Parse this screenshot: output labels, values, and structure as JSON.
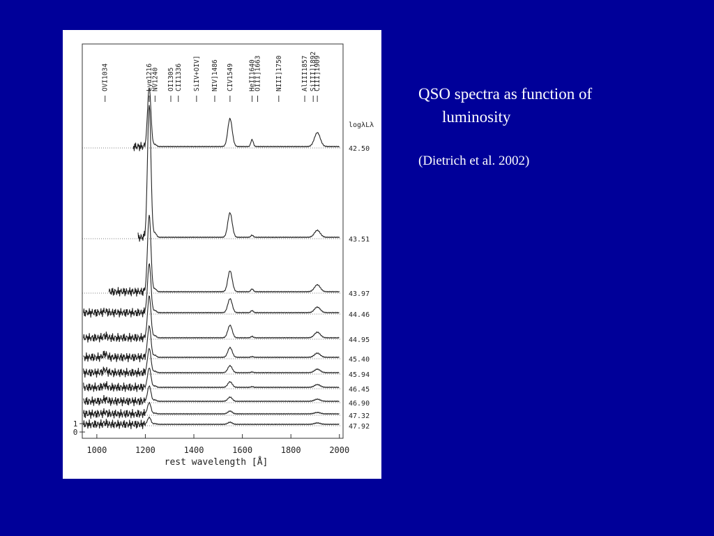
{
  "slide": {
    "title": "QSO spectra as function of luminosity",
    "citation": "(Dietrich et al. 2002)"
  },
  "figure": {
    "type": "spectra",
    "xlabel": "rest wavelength [Å]",
    "ylabel": "logλLλ",
    "xlim": [
      940,
      2015
    ],
    "xticks": [
      1000,
      1200,
      1400,
      1600,
      1800,
      2000
    ],
    "yticks": [
      0,
      1
    ],
    "lines": [
      "OVI1034",
      "Lyα1216",
      "NV1240",
      "OI1305",
      "CII1336",
      "SiIV+OIV]",
      "NIV]1486",
      "CIV1549",
      "HeII1640",
      "OIII]1663",
      "NIII]1750",
      "AlIII1857",
      "SiIII]1892",
      "CIII]1909"
    ],
    "luminosities": [
      {
        "value": 42.5,
        "label": "42.50"
      },
      {
        "value": 43.51,
        "label": "43.51"
      },
      {
        "value": 43.97,
        "label": "43.97"
      },
      {
        "value": 44.46,
        "label": "44.46"
      },
      {
        "value": 44.95,
        "label": "44.95"
      },
      {
        "value": 45.4,
        "label": "45.40"
      },
      {
        "value": 45.94,
        "label": "45.94"
      },
      {
        "value": 46.45,
        "label": "46.45"
      },
      {
        "value": 46.9,
        "label": "46.90"
      },
      {
        "value": 47.32,
        "label": "47.32"
      },
      {
        "value": 47.92,
        "label": "47.92"
      }
    ]
  }
}
